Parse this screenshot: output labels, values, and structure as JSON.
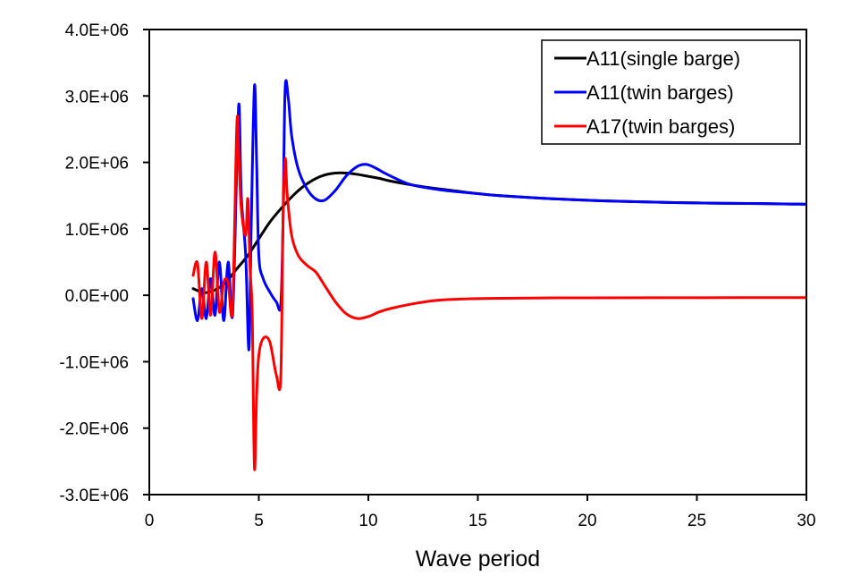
{
  "chart_data": {
    "type": "line",
    "title": "",
    "xlabel": "Wave period",
    "ylabel": "",
    "xlim": [
      0,
      30
    ],
    "ylim": [
      -3000000,
      4000000
    ],
    "x_ticks": [
      0,
      5,
      10,
      15,
      20,
      25,
      30
    ],
    "x_tick_labels": [
      "0",
      "5",
      "10",
      "15",
      "20",
      "25",
      "30"
    ],
    "y_ticks": [
      4000000,
      3000000,
      2000000,
      1000000,
      0,
      -1000000,
      -2000000,
      -3000000
    ],
    "y_tick_labels": [
      "4.0E+06",
      "3.0E+06",
      "2.0E+06",
      "1.0E+06",
      "0.0E+00",
      "-1.0E+06",
      "-2.0E+06",
      "-3.0E+06"
    ],
    "grid": false,
    "legend_position": "top-right",
    "series": [
      {
        "name": "A11(single barge)",
        "color": "#000000",
        "x": [
          2.0,
          2.5,
          3.0,
          3.5,
          4.0,
          4.5,
          5.0,
          5.5,
          6.0,
          6.5,
          7.0,
          7.5,
          8.0,
          8.5,
          9.0,
          9.5,
          10.0,
          10.5,
          11.0,
          12.0,
          13.0,
          14.0,
          15.0,
          16.0,
          18.0,
          20.0,
          22.0,
          25.0,
          28.0,
          30.0
        ],
        "y": [
          100000,
          40000,
          80000,
          200000,
          400000,
          600000,
          850000,
          1100000,
          1300000,
          1480000,
          1630000,
          1740000,
          1810000,
          1840000,
          1840000,
          1820000,
          1790000,
          1760000,
          1720000,
          1660000,
          1610000,
          1570000,
          1530000,
          1500000,
          1460000,
          1430000,
          1410000,
          1390000,
          1380000,
          1370000
        ]
      },
      {
        "name": "A11(twin barges)",
        "color": "#0000ff",
        "x": [
          2.0,
          2.2,
          2.4,
          2.6,
          2.8,
          3.0,
          3.2,
          3.4,
          3.6,
          3.8,
          4.0,
          4.1,
          4.2,
          4.4,
          4.55,
          4.65,
          4.8,
          4.9,
          5.0,
          5.2,
          5.5,
          5.8,
          6.0,
          6.1,
          6.2,
          6.35,
          6.5,
          6.8,
          7.2,
          7.6,
          8.0,
          8.5,
          9.0,
          9.5,
          9.9,
          10.3,
          10.8,
          11.5,
          12.0,
          13.0,
          14.0,
          15.0,
          16.0,
          18.0,
          20.0,
          22.0,
          25.0,
          28.0,
          30.0
        ],
        "y": [
          -50000,
          -380000,
          100000,
          -350000,
          250000,
          -300000,
          500000,
          -380000,
          500000,
          -300000,
          2000000,
          2870000,
          1500000,
          600000,
          -820000,
          1000000,
          3150000,
          2000000,
          600000,
          250000,
          50000,
          -100000,
          -150000,
          1000000,
          3100000,
          2950000,
          2400000,
          1900000,
          1600000,
          1450000,
          1430000,
          1580000,
          1800000,
          1940000,
          1970000,
          1920000,
          1830000,
          1720000,
          1660000,
          1600000,
          1560000,
          1530000,
          1500000,
          1460000,
          1430000,
          1410000,
          1390000,
          1380000,
          1370000
        ]
      },
      {
        "name": "A17(twin barges)",
        "color": "#ff0000",
        "x": [
          2.0,
          2.2,
          2.4,
          2.6,
          2.8,
          3.0,
          3.2,
          3.4,
          3.6,
          3.8,
          4.0,
          4.1,
          4.2,
          4.4,
          4.5,
          4.6,
          4.7,
          4.8,
          4.9,
          5.0,
          5.2,
          5.5,
          5.8,
          6.0,
          6.1,
          6.2,
          6.3,
          6.5,
          6.8,
          7.2,
          7.6,
          8.0,
          8.5,
          9.0,
          9.5,
          10.0,
          10.5,
          11.0,
          12.0,
          13.0,
          14.0,
          15.0,
          16.0,
          18.0,
          20.0,
          25.0,
          30.0
        ],
        "y": [
          300000,
          480000,
          -350000,
          500000,
          -300000,
          650000,
          -250000,
          200000,
          200000,
          -200000,
          2600000,
          2000000,
          1300000,
          900000,
          1450000,
          400000,
          -300000,
          -2600000,
          -1500000,
          -900000,
          -650000,
          -700000,
          -1200000,
          -1250000,
          1000000,
          2050000,
          1500000,
          900000,
          600000,
          450000,
          350000,
          150000,
          -100000,
          -280000,
          -350000,
          -320000,
          -250000,
          -200000,
          -130000,
          -80000,
          -60000,
          -50000,
          -45000,
          -40000,
          -38000,
          -36000,
          -35000
        ]
      }
    ]
  }
}
